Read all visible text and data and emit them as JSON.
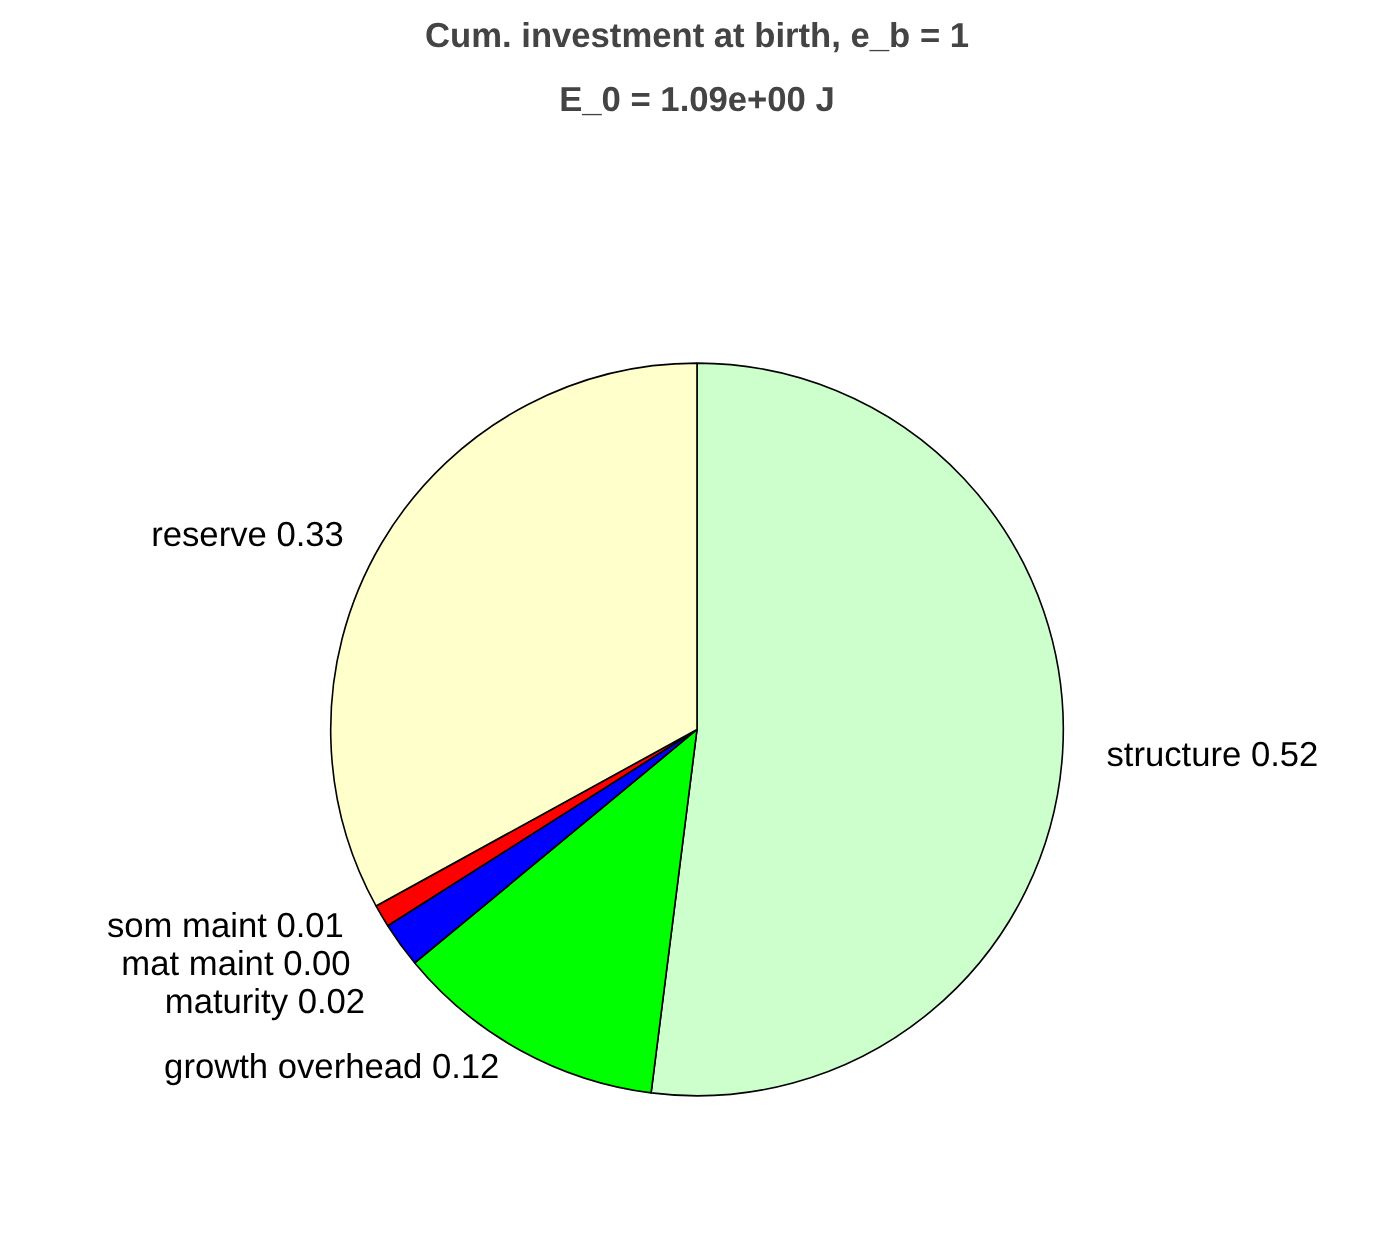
{
  "chart_data": {
    "type": "pie",
    "title": "Cum. investment at birth, e_b = 1",
    "subtitle": "E_0 = 1.09e+00 J",
    "categories": [
      "structure",
      "growth overhead",
      "maturity",
      "mat maint",
      "som maint",
      "reserve"
    ],
    "values": [
      0.52,
      0.12,
      0.02,
      0.0,
      0.01,
      0.33
    ],
    "value_labels": [
      "0.52",
      "0.12",
      "0.02",
      "0.00",
      "0.01",
      "0.33"
    ],
    "colors": [
      "#ccffcc",
      "#00ff00",
      "#0000ff",
      "#00ffff",
      "#ff0000",
      "#ffffcc"
    ]
  }
}
